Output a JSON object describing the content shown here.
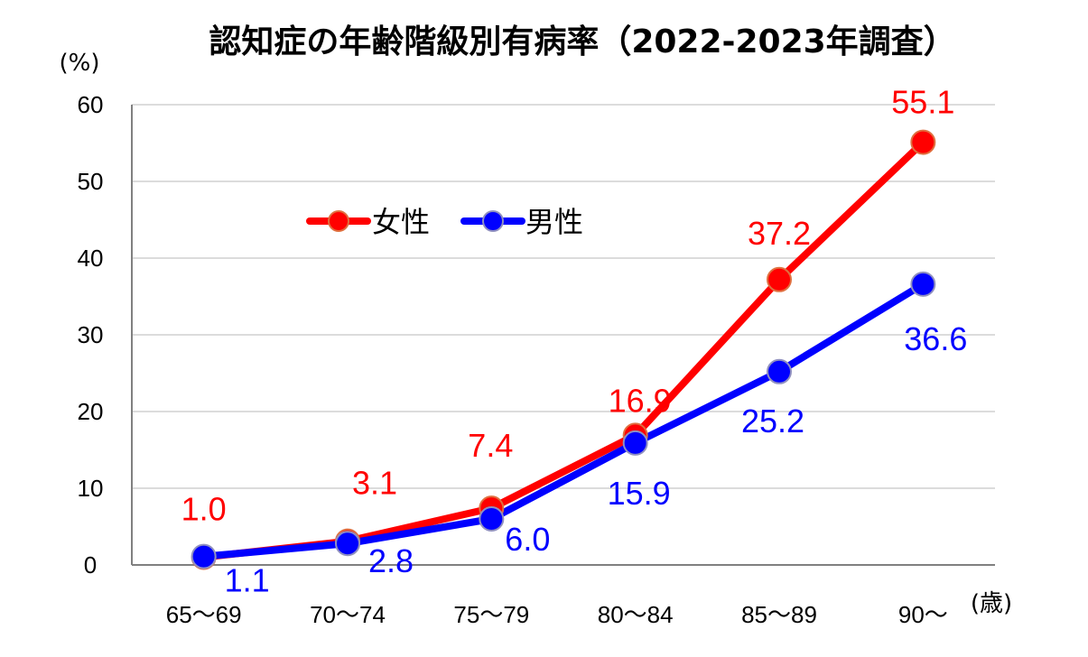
{
  "chart_data": {
    "type": "line",
    "title": "認知症の年齢階級別有病率（2022-2023年調査）",
    "ylabel": "(%)",
    "xlabel": "(歳)",
    "categories": [
      "65～69",
      "70～74",
      "75～79",
      "80～84",
      "85～89",
      "90～"
    ],
    "yticks": [
      "0",
      "10",
      "20",
      "30",
      "40",
      "50",
      "60"
    ],
    "ylim": [
      0,
      60
    ],
    "grid": true,
    "legend_position": "upper-left inside plot",
    "series": [
      {
        "name": "女性",
        "color": "#ff0000",
        "values": [
          1.0,
          3.1,
          7.4,
          16.9,
          37.2,
          55.1
        ],
        "labels": [
          "1.0",
          "3.1",
          "7.4",
          "16.9",
          "37.2",
          "55.1"
        ]
      },
      {
        "name": "男性",
        "color": "#0000ff",
        "values": [
          1.1,
          2.8,
          6.0,
          15.9,
          25.2,
          36.6
        ],
        "labels": [
          "1.1",
          "2.8",
          "6.0",
          "15.9",
          "25.2",
          "36.6"
        ]
      }
    ]
  }
}
